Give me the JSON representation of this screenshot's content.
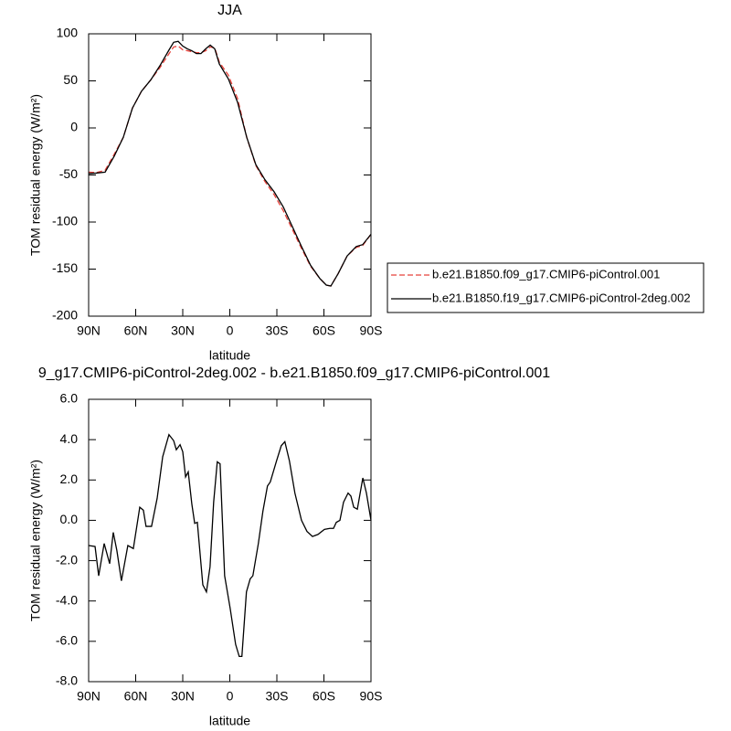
{
  "chart_data": [
    {
      "type": "line",
      "title": "JJA",
      "xlabel": "latitude",
      "ylabel": "TOM residual energy (W/m²)",
      "x": [
        90,
        85.3,
        79.5,
        73.7,
        67.9,
        62.1,
        56.3,
        50.4,
        44.6,
        38.7,
        35.8,
        32.9,
        30,
        27.1,
        24.2,
        21.3,
        18.4,
        15.4,
        12.5,
        9.6,
        6.7,
        0.9,
        -5,
        -10.8,
        -16.6,
        -22.4,
        -28.3,
        -34.1,
        -39.9,
        -45.7,
        -51.5,
        -57.4,
        -61.5,
        -64.4,
        -69,
        -74.8,
        -80.6,
        -84.7,
        -90
      ],
      "series": [
        {
          "name": "b.e21.B1850.f09_g17.CMIP6-piControl.001",
          "color": "#e8413a",
          "style": "dashed",
          "values": [
            -47,
            -47.5,
            -45,
            -28,
            -10,
            21,
            39,
            51,
            64,
            79,
            86,
            87,
            83,
            82,
            81,
            80,
            80,
            82,
            86,
            85,
            70,
            56,
            31,
            -10,
            -40,
            -57,
            -71,
            -88,
            -108,
            -128,
            -147,
            -160,
            -167,
            -168,
            -155,
            -136,
            -127,
            -125,
            -113
          ]
        },
        {
          "name": "b.e21.B1850.f19_g17.CMIP6-piControl-2deg.002",
          "color": "#000000",
          "style": "solid",
          "values": [
            -48.5,
            -48,
            -47,
            -30,
            -10,
            21,
            39,
            51,
            66,
            83,
            91,
            92,
            87,
            84,
            82,
            79,
            79,
            84,
            88,
            84,
            68,
            52,
            27,
            -10,
            -39,
            -55,
            -68,
            -84,
            -105,
            -126,
            -146,
            -160,
            -167,
            -168,
            -155,
            -136,
            -126,
            -124,
            -113
          ]
        }
      ],
      "xlim": [
        90,
        -90
      ],
      "xticks": [
        {
          "value": 90,
          "label": "90N"
        },
        {
          "value": 60,
          "label": "60N"
        },
        {
          "value": 30,
          "label": "30N"
        },
        0,
        {
          "value": -30,
          "label": "30S"
        },
        {
          "value": -60,
          "label": "60S"
        },
        {
          "value": -90,
          "label": "90S"
        }
      ],
      "ylim": [
        -200,
        100
      ],
      "yticks": [
        100,
        50,
        0,
        -50,
        -100,
        -150,
        -200
      ],
      "legend": "right"
    },
    {
      "type": "line",
      "title": "9_g17.CMIP6-piControl-2deg.002 - b.e21.B1850.f09_g17.CMIP6-piControl.001",
      "xlabel": "latitude",
      "ylabel": "TOM residual energy (W/m²)",
      "x": [
        90,
        85.9,
        83.6,
        80.1,
        76.6,
        74.3,
        72.0,
        69.1,
        65.0,
        61.5,
        57.4,
        55.1,
        53.4,
        49.9,
        46.3,
        42.8,
        38.8,
        35.8,
        34.1,
        31.7,
        30.0,
        28.2,
        26.5,
        24.2,
        22.4,
        20.7,
        17.2,
        14.9,
        12.6,
        10.3,
        8.0,
        6.2,
        3.3,
        -0.2,
        -3.7,
        -6.0,
        -7.7,
        -10.6,
        -13.0,
        -14.7,
        -18.2,
        -21.1,
        -24.0,
        -25.8,
        -29.8,
        -32.8,
        -35.1,
        -38.0,
        -41.5,
        -45.7,
        -49.2,
        -52.7,
        -56.2,
        -60.3,
        -63.8,
        -66.1,
        -67.9,
        -70.2,
        -72.5,
        -75.4,
        -77.2,
        -79.0,
        -81.3,
        -84.8,
        -87.1,
        -90
      ],
      "series": [
        {
          "color": "#000000",
          "style": "solid",
          "values": [
            -1.25,
            -1.3,
            -2.75,
            -1.15,
            -2.15,
            -0.6,
            -1.5,
            -3.0,
            -1.25,
            -1.4,
            0.65,
            0.5,
            -0.3,
            -0.3,
            1.1,
            3.15,
            4.25,
            3.95,
            3.5,
            3.75,
            3.4,
            2.15,
            2.4,
            0.8,
            -0.15,
            -0.1,
            -3.2,
            -3.55,
            -2.3,
            0.9,
            2.9,
            2.8,
            -2.75,
            -4.35,
            -6.15,
            -6.75,
            -6.75,
            -3.55,
            -2.9,
            -2.75,
            -1.15,
            0.45,
            1.7,
            1.9,
            2.95,
            3.7,
            3.9,
            2.95,
            1.35,
            0.0,
            -0.55,
            -0.8,
            -0.7,
            -0.45,
            -0.4,
            -0.4,
            -0.1,
            0.0,
            0.9,
            1.35,
            1.2,
            0.65,
            0.55,
            2.1,
            1.35,
            0.0
          ]
        }
      ],
      "xlim": [
        90,
        -90
      ],
      "xticks": [
        {
          "value": 90,
          "label": "90N"
        },
        {
          "value": 60,
          "label": "60N"
        },
        {
          "value": 30,
          "label": "30N"
        },
        0,
        {
          "value": -30,
          "label": "30S"
        },
        {
          "value": -60,
          "label": "60S"
        },
        {
          "value": -90,
          "label": "90S"
        }
      ],
      "ylim": [
        -8,
        6
      ],
      "yticks": [
        {
          "value": 6,
          "label": "6.0"
        },
        {
          "value": 4,
          "label": "4.0"
        },
        {
          "value": 2,
          "label": "2.0"
        },
        {
          "value": 0,
          "label": "0.0"
        },
        {
          "value": -2,
          "label": "-2.0"
        },
        {
          "value": -4,
          "label": "-4.0"
        },
        {
          "value": -6,
          "label": "-6.0"
        },
        {
          "value": -8,
          "label": "-8.0"
        }
      ]
    }
  ]
}
